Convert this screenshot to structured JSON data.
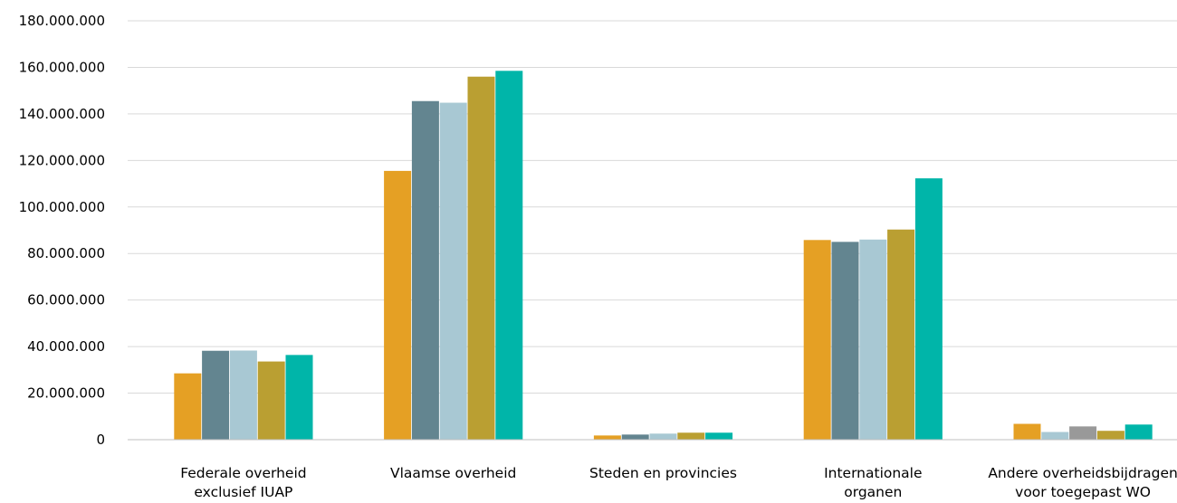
{
  "chart_data": {
    "type": "bar",
    "title": "",
    "xlabel": "",
    "ylabel": "",
    "ylim": [
      0,
      180000000
    ],
    "ytick_step": 20000000,
    "ytick_labels": [
      "0",
      "20.000.000",
      "40.000.000",
      "60.000.000",
      "80.000.000",
      "100.000.000",
      "120.000.000",
      "140.000.000",
      "160.000.000",
      "180.000.000"
    ],
    "grid": true,
    "legend": "none",
    "categories": [
      [
        "Federale overheid",
        "exclusief IUAP"
      ],
      [
        "Vlaamse overheid"
      ],
      [
        "Steden en provincies"
      ],
      [
        "Internationale",
        "organen"
      ],
      [
        "Andere overheidsbijdragen",
        "voor toegepast WO"
      ]
    ],
    "bars": [
      [
        {
          "value": 28500000,
          "color": "#E5A024"
        },
        {
          "value": 38200000,
          "color": "#638590"
        },
        {
          "value": 38300000,
          "color": "#A8C8D3"
        },
        {
          "value": 33600000,
          "color": "#BA9F32"
        },
        {
          "value": 36400000,
          "color": "#00B5A9"
        }
      ],
      [
        {
          "value": 115500000,
          "color": "#E5A024"
        },
        {
          "value": 145500000,
          "color": "#638590"
        },
        {
          "value": 144800000,
          "color": "#A8C8D3"
        },
        {
          "value": 156000000,
          "color": "#BA9F32"
        },
        {
          "value": 158500000,
          "color": "#00B5A9"
        }
      ],
      [
        {
          "value": 1800000,
          "color": "#E5A024"
        },
        {
          "value": 2200000,
          "color": "#638590"
        },
        {
          "value": 2600000,
          "color": "#A8C8D3"
        },
        {
          "value": 3000000,
          "color": "#BA9F32"
        },
        {
          "value": 3000000,
          "color": "#00B5A9"
        }
      ],
      [
        {
          "value": 85800000,
          "color": "#E5A024"
        },
        {
          "value": 85000000,
          "color": "#638590"
        },
        {
          "value": 86000000,
          "color": "#A8C8D3"
        },
        {
          "value": 90300000,
          "color": "#BA9F32"
        },
        {
          "value": 112300000,
          "color": "#00B5A9"
        }
      ],
      [
        {
          "value": 6800000,
          "color": "#E5A024"
        },
        {
          "value": 3300000,
          "color": "#A8C8D3"
        },
        {
          "value": 5700000,
          "color": "#999999"
        },
        {
          "value": 3800000,
          "color": "#BA9F32"
        },
        {
          "value": 6500000,
          "color": "#00B5A9"
        }
      ]
    ],
    "colors": {
      "grid": "#D9D9D9",
      "axis": "#BFBFBF"
    }
  }
}
